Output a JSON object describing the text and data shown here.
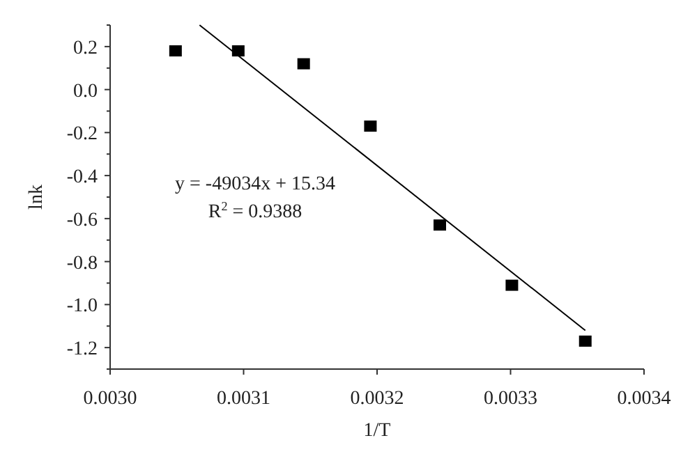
{
  "chart_data": {
    "type": "scatter",
    "xlabel": "1/T",
    "ylabel": "lnk",
    "series": [
      {
        "color": "#000000",
        "marker": "square",
        "x": [
          0.003049,
          0.003096,
          0.003145,
          0.003195,
          0.003247,
          0.003301,
          0.003356
        ],
        "values": [
          0.18,
          0.18,
          0.12,
          -0.17,
          -0.63,
          -0.91,
          -1.17
        ]
      },
      {
        "type": "line",
        "color": "#000000",
        "marker": "none",
        "line_style": "solid",
        "x": [
          0.003067,
          0.003356
        ],
        "values": [
          0.3,
          -1.12
        ]
      }
    ],
    "xlim": [
      0.003,
      0.0034
    ],
    "ylim": [
      -1.3,
      0.3
    ],
    "xticks": [
      {
        "value": 0.003,
        "label": "0.0030"
      },
      {
        "value": 0.0031,
        "label": "0.0031"
      },
      {
        "value": 0.0032,
        "label": "0.0032"
      },
      {
        "value": 0.0033,
        "label": "0.0033"
      },
      {
        "value": 0.0034,
        "label": "0.0034"
      }
    ],
    "yticks": [
      {
        "value": -1.3,
        "label": null
      },
      {
        "value": -1.2,
        "label": "-1.2"
      },
      {
        "value": -1.1,
        "label": null
      },
      {
        "value": -1.0,
        "label": "-1.0"
      },
      {
        "value": -0.9,
        "label": null
      },
      {
        "value": -0.8,
        "label": "-0.8"
      },
      {
        "value": -0.7,
        "label": null
      },
      {
        "value": -0.6,
        "label": "-0.6"
      },
      {
        "value": -0.5,
        "label": null
      },
      {
        "value": -0.4,
        "label": "-0.4"
      },
      {
        "value": -0.3,
        "label": null
      },
      {
        "value": -0.2,
        "label": "-0.2"
      },
      {
        "value": -0.1,
        "label": null
      },
      {
        "value": 0.0,
        "label": "0.0"
      },
      {
        "value": 0.1,
        "label": null
      },
      {
        "value": 0.2,
        "label": "0.2"
      },
      {
        "value": 0.3,
        "label": null
      }
    ],
    "annotations": [
      "y = -49034x + 15.34",
      "R$^{2}$ = 0.9388"
    ],
    "grid": false
  }
}
